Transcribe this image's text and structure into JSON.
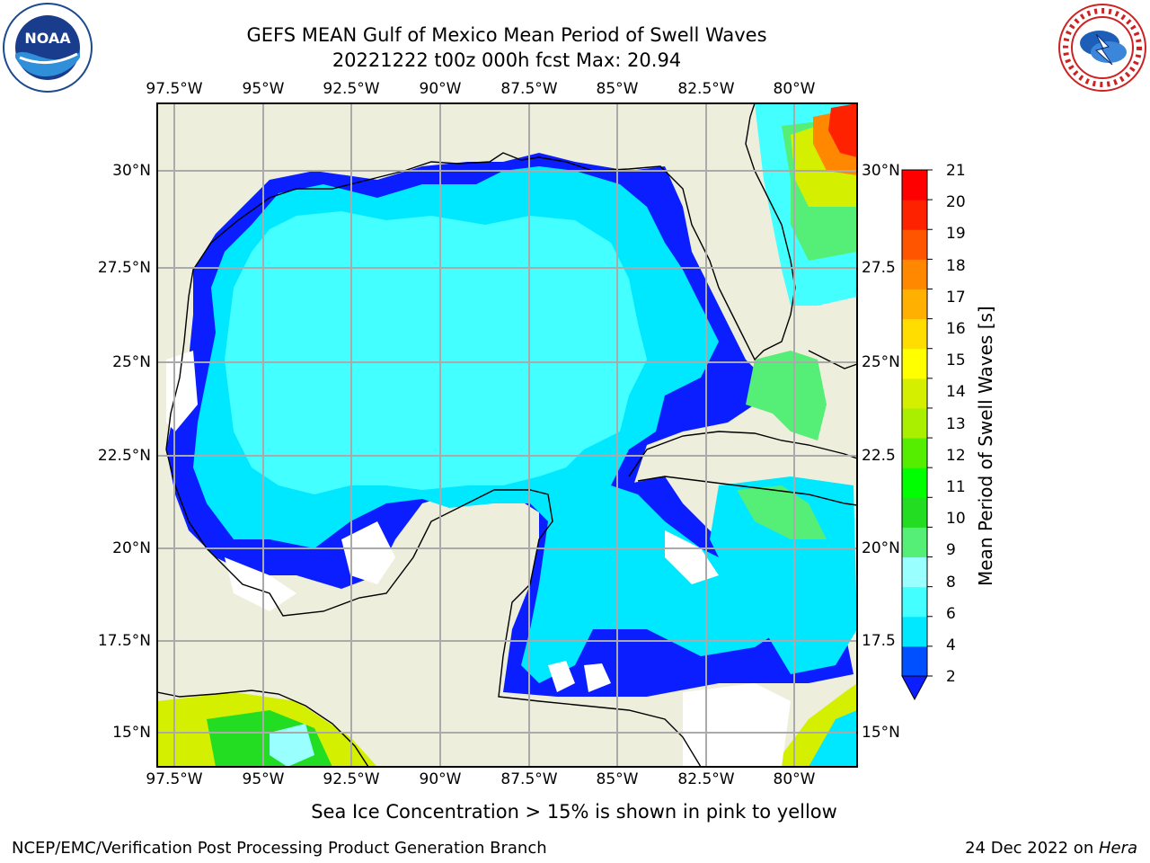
{
  "header": {
    "title_line1": "GEFS MEAN Gulf of Mexico Mean Period of Swell Waves",
    "title_line2": "20221222 t00z 000h fcst   Max: 20.94"
  },
  "logos": {
    "left": {
      "name": "noaa-logo",
      "text": "NOAA"
    },
    "right": {
      "name": "nws-logo",
      "ring_text": "NATIONAL WEATHER SERVICE"
    }
  },
  "map": {
    "x_ticks_top": [
      "97.5°W",
      "95°W",
      "92.5°W",
      "90°W",
      "87.5°W",
      "85°W",
      "82.5°W",
      "80°W"
    ],
    "x_ticks_bottom": [
      "97.5°W",
      "95°W",
      "92.5°W",
      "90°W",
      "87.5°W",
      "85°W",
      "82.5°W",
      "80°W"
    ],
    "y_ticks_left": [
      "30°N",
      "27.5°N",
      "25°N",
      "22.5°N",
      "20°N",
      "17.5°N",
      "15°N"
    ],
    "y_ticks_right": [
      "30°N",
      "27.5",
      "25°N",
      "22.5",
      "20°N",
      "17.5",
      "15°N"
    ],
    "land_color": "#eeeedd",
    "coast_color": "#000000",
    "grid_color": "#aaaaaa"
  },
  "colorbar": {
    "label": "Mean Period of Swell Waves [s]",
    "ticks": [
      "21",
      "20",
      "19",
      "18",
      "17",
      "16",
      "15",
      "14",
      "13",
      "12",
      "11",
      "10",
      "9",
      "8",
      "6",
      "4",
      "2"
    ],
    "colors": [
      "#0050ff",
      "#00e8ff",
      "#44ffff",
      "#99ffff",
      "#55ee77",
      "#22dd22",
      "#00ff00",
      "#55ee00",
      "#aaee00",
      "#d4f000",
      "#ffff00",
      "#ffdd00",
      "#ffb000",
      "#ff8800",
      "#ff5500",
      "#ff2200",
      "#ff0000"
    ]
  },
  "notes": {
    "ice": "Sea Ice Concentration > 15% is shown in pink to yellow"
  },
  "footer": {
    "left": "NCEP/EMC/Verification Post Processing Product Generation Branch",
    "date": "24 Dec 2022 on ",
    "machine": "Hera"
  }
}
